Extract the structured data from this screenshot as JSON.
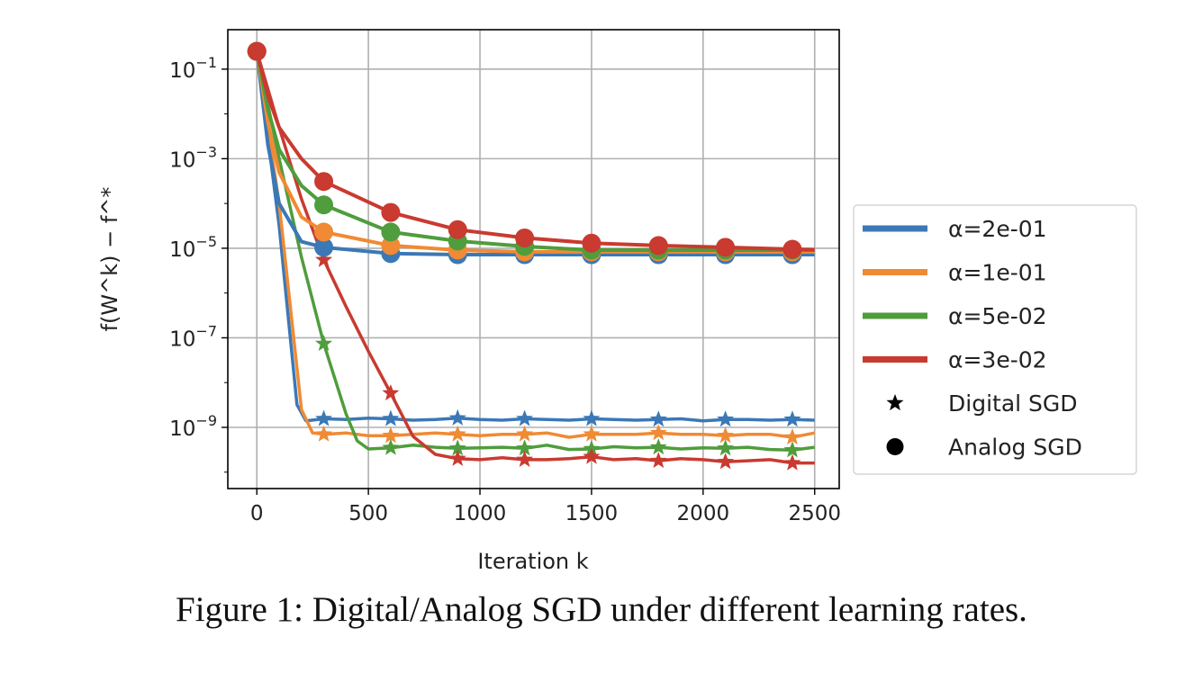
{
  "chart_data": {
    "type": "line",
    "title": "",
    "xlabel": "Iteration k",
    "ylabel": "f(W^k) − f^*",
    "yscale": "log",
    "xlim": [
      -130,
      2610
    ],
    "ylim": [
      4.3e-11,
      0.76
    ],
    "grid": true,
    "x_ticks": [
      0,
      500,
      1000,
      1500,
      2000,
      2500
    ],
    "x_tick_labels": [
      "0",
      "500",
      "1000",
      "1500",
      "2000",
      "2500"
    ],
    "y_ticks": [
      0.1,
      0.001,
      1e-05,
      1e-07,
      1e-09
    ],
    "y_tick_labels": [
      {
        "base": "10",
        "exp": "−1"
      },
      {
        "base": "10",
        "exp": "−3"
      },
      {
        "base": "10",
        "exp": "−5"
      },
      {
        "base": "10",
        "exp": "−7"
      },
      {
        "base": "10",
        "exp": "−9"
      }
    ],
    "legend_position": "right-outside",
    "legend": [
      {
        "label": "α=2e-01",
        "color": "#3b78b6",
        "kind": "line"
      },
      {
        "label": "α=1e-01",
        "color": "#f08a34",
        "kind": "line"
      },
      {
        "label": "α=5e-02",
        "color": "#4f9d3c",
        "kind": "line"
      },
      {
        "label": "α=3e-02",
        "color": "#c93a30",
        "kind": "line"
      },
      {
        "label": "Digital SGD",
        "color": "#000000",
        "kind": "star"
      },
      {
        "label": "Analog SGD",
        "color": "#000000",
        "kind": "circle"
      }
    ],
    "marker_every": 300,
    "series": [
      {
        "name": "α=2e-01 Analog SGD",
        "color": "#3b78b6",
        "marker": "circle",
        "x": [
          0,
          50,
          100,
          200,
          300,
          600,
          900,
          1200,
          1500,
          1800,
          2100,
          2400,
          2500
        ],
        "y": [
          0.25,
          0.002,
          0.0001,
          1.4e-05,
          1.05e-05,
          7.6e-06,
          7.2e-06,
          7.2e-06,
          7.2e-06,
          7.2e-06,
          7.2e-06,
          7.2e-06,
          7.2e-06
        ]
      },
      {
        "name": "α=1e-01 Analog SGD",
        "color": "#f08a34",
        "marker": "circle",
        "x": [
          0,
          50,
          100,
          200,
          300,
          600,
          900,
          1200,
          1500,
          1800,
          2100,
          2400,
          2500
        ],
        "y": [
          0.25,
          0.0063,
          0.0005,
          5e-05,
          2.3e-05,
          1.15e-05,
          9.1e-06,
          8.3e-06,
          8.3e-06,
          8.3e-06,
          8.3e-06,
          8.3e-06,
          8.3e-06
        ]
      },
      {
        "name": "α=5e-02 Analog SGD",
        "color": "#4f9d3c",
        "marker": "circle",
        "x": [
          0,
          50,
          100,
          200,
          300,
          600,
          900,
          1200,
          1500,
          1800,
          2100,
          2400,
          2500
        ],
        "y": [
          0.25,
          0.0126,
          0.0016,
          0.00025,
          9.3e-05,
          2.3e-05,
          1.45e-05,
          1.1e-05,
          9.1e-06,
          9.1e-06,
          9.1e-06,
          9.1e-06,
          9.1e-06
        ]
      },
      {
        "name": "α=3e-02 Analog SGD",
        "color": "#c93a30",
        "marker": "circle",
        "x": [
          0,
          50,
          100,
          200,
          300,
          600,
          900,
          1200,
          1500,
          1800,
          2100,
          2400,
          2500
        ],
        "y": [
          0.25,
          0.025,
          0.005,
          0.001,
          0.00031,
          6.3e-05,
          2.6e-05,
          1.7e-05,
          1.3e-05,
          1.15e-05,
          1.05e-05,
          9.5e-06,
          9.3e-06
        ]
      },
      {
        "name": "α=2e-01 Digital SGD",
        "color": "#3b78b6",
        "marker": "star",
        "x": [
          0,
          100,
          180,
          220,
          300,
          400,
          500,
          600,
          700,
          800,
          900,
          1000,
          1100,
          1200,
          1300,
          1400,
          1500,
          1600,
          1700,
          1800,
          1900,
          2000,
          2100,
          2200,
          2300,
          2400,
          2500
        ],
        "y": [
          0.25,
          3.2e-05,
          3.2e-09,
          1.4e-09,
          1.55e-09,
          1.5e-09,
          1.6e-09,
          1.55e-09,
          1.45e-09,
          1.5e-09,
          1.6e-09,
          1.5e-09,
          1.45e-09,
          1.55e-09,
          1.5e-09,
          1.45e-09,
          1.55e-09,
          1.5e-09,
          1.45e-09,
          1.5e-09,
          1.55e-09,
          1.4e-09,
          1.5e-09,
          1.5e-09,
          1.45e-09,
          1.5e-09,
          1.45e-09
        ]
      },
      {
        "name": "α=1e-01 Digital SGD",
        "color": "#f08a34",
        "marker": "star",
        "x": [
          0,
          100,
          200,
          250,
          300,
          400,
          500,
          600,
          700,
          800,
          900,
          1000,
          1100,
          1200,
          1300,
          1400,
          1500,
          1600,
          1700,
          1800,
          1900,
          2000,
          2100,
          2200,
          2300,
          2400,
          2500
        ],
        "y": [
          0.25,
          0.0001,
          2.5e-09,
          7.5e-10,
          7e-10,
          7.5e-10,
          6.5e-10,
          6.5e-10,
          7e-10,
          7.5e-10,
          7e-10,
          6.5e-10,
          7e-10,
          7e-10,
          7.5e-10,
          6e-10,
          7e-10,
          7e-10,
          7e-10,
          7.5e-10,
          7e-10,
          7e-10,
          6.5e-10,
          7e-10,
          7e-10,
          6e-10,
          7.5e-10
        ]
      },
      {
        "name": "α=5e-02 Digital SGD",
        "color": "#4f9d3c",
        "marker": "star",
        "x": [
          0,
          100,
          200,
          300,
          400,
          450,
          500,
          600,
          700,
          800,
          900,
          1000,
          1100,
          1200,
          1300,
          1400,
          1500,
          1600,
          1700,
          1800,
          1900,
          2000,
          2100,
          2200,
          2300,
          2400,
          2500
        ],
        "y": [
          0.25,
          0.001,
          6.3e-06,
          7.4e-08,
          2e-09,
          5e-10,
          3.3e-10,
          3.5e-10,
          4e-10,
          3.6e-10,
          3.4e-10,
          3.5e-10,
          3.6e-10,
          3.4e-10,
          4e-10,
          3.2e-10,
          3.3e-10,
          3.7e-10,
          3.5e-10,
          3.6e-10,
          3.3e-10,
          3.5e-10,
          3.4e-10,
          3.6e-10,
          3.2e-10,
          3.1e-10,
          3.6e-10
        ]
      },
      {
        "name": "α=3e-02 Digital SGD",
        "color": "#c93a30",
        "marker": "star",
        "x": [
          0,
          100,
          200,
          300,
          400,
          500,
          600,
          700,
          800,
          900,
          1000,
          1100,
          1200,
          1300,
          1400,
          1500,
          1600,
          1700,
          1800,
          1900,
          2000,
          2100,
          2200,
          2300,
          2400,
          2500
        ],
        "y": [
          0.25,
          0.005,
          0.000126,
          5.5e-06,
          5e-07,
          5e-08,
          5.8e-09,
          6.3e-10,
          2.5e-10,
          2e-10,
          1.9e-10,
          2.1e-10,
          1.9e-10,
          1.9e-10,
          2e-10,
          2.2e-10,
          1.9e-10,
          2e-10,
          1.8e-10,
          2e-10,
          1.9e-10,
          1.7e-10,
          1.8e-10,
          1.9e-10,
          1.6e-10,
          1.6e-10
        ]
      }
    ]
  },
  "caption": "Figure 1: Digital/Analog SGD under different learning rates."
}
